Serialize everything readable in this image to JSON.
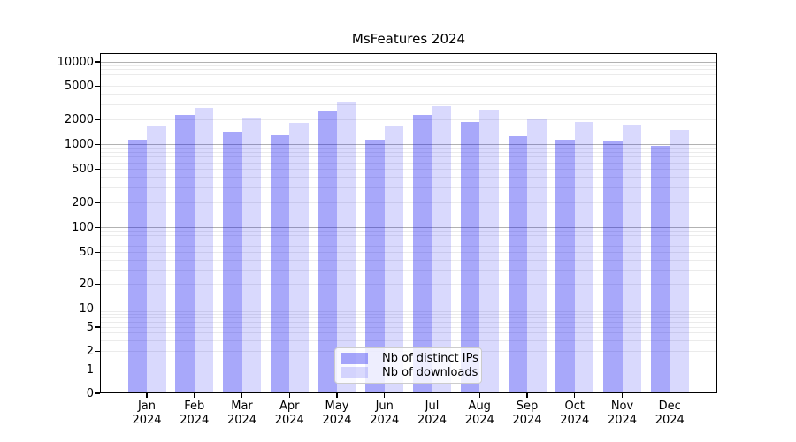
{
  "chart_data": {
    "type": "bar",
    "title": "MsFeatures 2024",
    "year": "2024",
    "categories": [
      "Jan",
      "Feb",
      "Mar",
      "Apr",
      "May",
      "Jun",
      "Jul",
      "Aug",
      "Sep",
      "Oct",
      "Nov",
      "Dec"
    ],
    "series": [
      {
        "name": "Nb of distinct IPs",
        "color": "rgba(0,0,240,0.34)",
        "color_hex": "#a8a8fa",
        "values": [
          1150,
          2250,
          1430,
          1290,
          2520,
          1140,
          2260,
          1890,
          1260,
          1150,
          1110,
          960
        ]
      },
      {
        "name": "Nb of downloads",
        "color": "rgba(0,0,240,0.15)",
        "color_hex": "#d8d8fa",
        "values": [
          1700,
          2750,
          2120,
          1840,
          3250,
          1700,
          2920,
          2580,
          2000,
          1860,
          1740,
          1490
        ]
      }
    ],
    "yscale": "asinh",
    "ylim": [
      0,
      13000
    ],
    "yticks": [
      10000,
      5000,
      2000,
      1000,
      500,
      200,
      100,
      50,
      20,
      10,
      5,
      2,
      1,
      0
    ],
    "grid": "horizontal, minor + major (powers of 10 darker)",
    "legend_position": "lower center",
    "colors": {
      "major_grid": "rgba(0,0,0,0.30)",
      "minor_grid": "rgba(0,0,0,0.08)",
      "spine": "#000000"
    }
  }
}
